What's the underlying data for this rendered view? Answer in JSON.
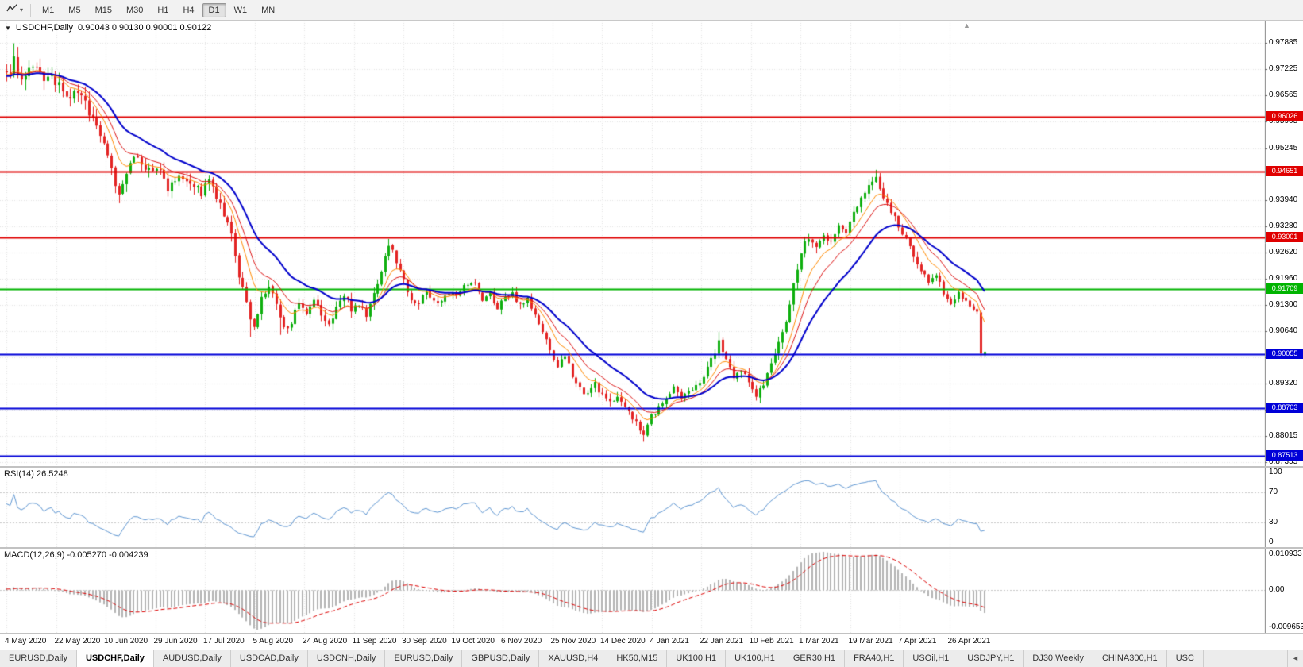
{
  "toolbar": {
    "timeframes": [
      "M1",
      "M5",
      "M15",
      "M30",
      "H1",
      "H4",
      "D1",
      "W1",
      "MN"
    ],
    "selected_timeframe": "D1"
  },
  "icons": {
    "dropdown_caret": "▾",
    "title_arrow": "▼",
    "shift_marker": "▲",
    "tab_scroll_left": "◄"
  },
  "chart": {
    "type": "candlestick",
    "symbol": "USDCHF,Daily",
    "ohlc": {
      "open": "0.90043",
      "high": "0.90130",
      "low": "0.90001",
      "close": "0.90122"
    },
    "price_range": {
      "top": 0.9845,
      "bottom": 0.8725
    },
    "price_axis_labels": [
      "0.97885",
      "0.97225",
      "0.96565",
      "0.95905",
      "0.95245",
      "0.94585",
      "0.93940",
      "0.93280",
      "0.92620",
      "0.91960",
      "0.91300",
      "0.90640",
      "0.89980",
      "0.89320",
      "0.88660",
      "0.88015",
      "0.87355"
    ],
    "date_axis_labels": [
      "4 May 2020",
      "22 May 2020",
      "10 Jun 2020",
      "29 Jun 2020",
      "17 Jul 2020",
      "5 Aug 2020",
      "24 Aug 2020",
      "11 Sep 2020",
      "30 Sep 2020",
      "19 Oct 2020",
      "6 Nov 2020",
      "25 Nov 2020",
      "14 Dec 2020",
      "4 Jan 2021",
      "22 Jan 2021",
      "10 Feb 2021",
      "1 Mar 2021",
      "19 Mar 2021",
      "7 Apr 2021",
      "26 Apr 2021"
    ],
    "hlines": [
      {
        "price": 0.96026,
        "label": "0.96026",
        "color": "#e00000",
        "width": 2
      },
      {
        "price": 0.94651,
        "label": "0.94651",
        "color": "#e00000",
        "width": 2
      },
      {
        "price": 0.93001,
        "label": "0.93001",
        "color": "#e00000",
        "width": 2
      },
      {
        "price": 0.91709,
        "label": "0.91709",
        "color": "#00b400",
        "width": 2
      },
      {
        "price": 0.90055,
        "label": "0.90055",
        "color": "#0000d8",
        "width": 2
      },
      {
        "price": 0.88703,
        "label": "0.88703",
        "color": "#0000d8",
        "width": 2
      },
      {
        "price": 0.87513,
        "label": "0.87513",
        "color": "#0000d8",
        "width": 2
      }
    ],
    "count": 262,
    "seed": 9,
    "series_anchors": [
      [
        0,
        0.9702
      ],
      [
        2,
        0.9748
      ],
      [
        4,
        0.9692
      ],
      [
        7,
        0.9722
      ],
      [
        10,
        0.9701
      ],
      [
        13,
        0.9694
      ],
      [
        16,
        0.9646
      ],
      [
        19,
        0.9668
      ],
      [
        22,
        0.9618
      ],
      [
        25,
        0.956
      ],
      [
        27,
        0.9512
      ],
      [
        30,
        0.94
      ],
      [
        32,
        0.9458
      ],
      [
        35,
        0.9512
      ],
      [
        37,
        0.9468
      ],
      [
        40,
        0.9478
      ],
      [
        43,
        0.9428
      ],
      [
        46,
        0.9462
      ],
      [
        49,
        0.9442
      ],
      [
        52,
        0.9412
      ],
      [
        54,
        0.9442
      ],
      [
        56,
        0.94
      ],
      [
        58,
        0.9352
      ],
      [
        60,
        0.9302
      ],
      [
        62,
        0.9205
      ],
      [
        64,
        0.9128
      ],
      [
        66,
        0.9078
      ],
      [
        68,
        0.9142
      ],
      [
        70,
        0.9178
      ],
      [
        72,
        0.9128
      ],
      [
        74,
        0.9068
      ],
      [
        76,
        0.9092
      ],
      [
        78,
        0.9128
      ],
      [
        80,
        0.9102
      ],
      [
        82,
        0.9138
      ],
      [
        84,
        0.9106
      ],
      [
        86,
        0.9076
      ],
      [
        88,
        0.9128
      ],
      [
        90,
        0.9152
      ],
      [
        92,
        0.9122
      ],
      [
        94,
        0.9136
      ],
      [
        96,
        0.9102
      ],
      [
        98,
        0.9158
      ],
      [
        100,
        0.9218
      ],
      [
        102,
        0.9282
      ],
      [
        104,
        0.9242
      ],
      [
        106,
        0.9192
      ],
      [
        108,
        0.9148
      ],
      [
        110,
        0.9132
      ],
      [
        112,
        0.9165
      ],
      [
        114,
        0.9142
      ],
      [
        116,
        0.9136
      ],
      [
        118,
        0.9158
      ],
      [
        120,
        0.9152
      ],
      [
        122,
        0.9186
      ],
      [
        125,
        0.9182
      ],
      [
        127,
        0.9142
      ],
      [
        129,
        0.9158
      ],
      [
        131,
        0.9122
      ],
      [
        133,
        0.9146
      ],
      [
        135,
        0.9158
      ],
      [
        137,
        0.9132
      ],
      [
        139,
        0.9146
      ],
      [
        141,
        0.9102
      ],
      [
        143,
        0.9062
      ],
      [
        145,
        0.9012
      ],
      [
        147,
        0.8978
      ],
      [
        149,
        0.8996
      ],
      [
        151,
        0.8956
      ],
      [
        153,
        0.8922
      ],
      [
        155,
        0.8902
      ],
      [
        157,
        0.8932
      ],
      [
        159,
        0.8902
      ],
      [
        161,
        0.8882
      ],
      [
        163,
        0.8906
      ],
      [
        165,
        0.8872
      ],
      [
        167,
        0.8846
      ],
      [
        170,
        0.8802
      ],
      [
        172,
        0.8852
      ],
      [
        175,
        0.8882
      ],
      [
        178,
        0.8922
      ],
      [
        180,
        0.8892
      ],
      [
        183,
        0.892
      ],
      [
        186,
        0.8952
      ],
      [
        188,
        0.8992
      ],
      [
        190,
        0.9038
      ],
      [
        192,
        0.8992
      ],
      [
        194,
        0.8938
      ],
      [
        196,
        0.8966
      ],
      [
        198,
        0.8936
      ],
      [
        200,
        0.8908
      ],
      [
        202,
        0.8932
      ],
      [
        204,
        0.8976
      ],
      [
        206,
        0.9032
      ],
      [
        208,
        0.9092
      ],
      [
        210,
        0.9182
      ],
      [
        212,
        0.9262
      ],
      [
        214,
        0.9302
      ],
      [
        216,
        0.9278
      ],
      [
        218,
        0.9312
      ],
      [
        220,
        0.9286
      ],
      [
        222,
        0.933
      ],
      [
        224,
        0.9308
      ],
      [
        226,
        0.9362
      ],
      [
        228,
        0.9402
      ],
      [
        230,
        0.9432
      ],
      [
        232,
        0.9446
      ],
      [
        234,
        0.9392
      ],
      [
        236,
        0.9362
      ],
      [
        238,
        0.9332
      ],
      [
        240,
        0.9292
      ],
      [
        242,
        0.9252
      ],
      [
        244,
        0.9222
      ],
      [
        246,
        0.9182
      ],
      [
        248,
        0.9212
      ],
      [
        250,
        0.9162
      ],
      [
        252,
        0.9132
      ],
      [
        254,
        0.9156
      ],
      [
        256,
        0.9142
      ],
      [
        258,
        0.9122
      ],
      [
        259,
        0.9112
      ],
      [
        260,
        0.9008
      ],
      [
        261,
        0.9012
      ]
    ],
    "volatility_anchors": [
      [
        0,
        0.0034
      ],
      [
        20,
        0.003
      ],
      [
        40,
        0.0026
      ],
      [
        60,
        0.0026
      ],
      [
        80,
        0.002
      ],
      [
        100,
        0.002
      ],
      [
        120,
        0.0015
      ],
      [
        140,
        0.0018
      ],
      [
        160,
        0.0017
      ],
      [
        175,
        0.0015
      ],
      [
        190,
        0.0018
      ],
      [
        205,
        0.0022
      ],
      [
        220,
        0.002
      ],
      [
        235,
        0.0022
      ],
      [
        250,
        0.0016
      ],
      [
        261,
        0.0014
      ]
    ],
    "wick_overrides": [
      [
        2,
        "h",
        0.9788
      ],
      [
        30,
        "l",
        0.9386
      ],
      [
        65,
        "l",
        0.905
      ],
      [
        73,
        "l",
        0.9055
      ],
      [
        102,
        "h",
        0.9296
      ],
      [
        125,
        "h",
        0.9196
      ],
      [
        170,
        "l",
        0.8786
      ],
      [
        190,
        "h",
        0.9062
      ],
      [
        231,
        "h",
        0.9452
      ],
      [
        232,
        "h",
        0.947
      ],
      [
        260,
        "l",
        0.9
      ]
    ],
    "moving_averages": [
      {
        "period": 8,
        "color": "#ff8a00",
        "width": 1
      },
      {
        "period": 13,
        "color": "#dd1111",
        "width": 1
      },
      {
        "period": 24,
        "color": "#0000cc",
        "width": 2
      }
    ],
    "colors": {
      "candle_up": "#0faf0f",
      "candle_down": "#e32424",
      "grid": "#e4e4e4",
      "level_line": "#c8c8c8",
      "scale_separator": "#7a7a7a"
    }
  },
  "rsi": {
    "name": "RSI(14)",
    "value": "26.5248",
    "scale_labels": [
      "100",
      "70",
      "30",
      "0"
    ],
    "level_lines": [
      70,
      30
    ],
    "color": "#5e96d2"
  },
  "macd": {
    "name": "MACD(12,26,9)",
    "main_value": "-0.005270",
    "signal_value": "-0.004239",
    "scale_labels": [
      "0.010933",
      "0.00",
      "-0.009653"
    ],
    "histogram_color": "#b4b4b4",
    "signal_color": "#dd0000"
  },
  "tabs": {
    "items": [
      "EURUSD,Daily",
      "USDCHF,Daily",
      "AUDUSD,Daily",
      "USDCAD,Daily",
      "USDCNH,Daily",
      "EURUSD,Daily",
      "GBPUSD,Daily",
      "XAUUSD,H4",
      "HK50,M15",
      "UK100,H1",
      "UK100,H1",
      "GER30,H1",
      "FRA40,H1",
      "USOil,H1",
      "USDJPY,H1",
      "DJ30,Weekly",
      "CHINA300,H1",
      "USC"
    ],
    "active_index": 1
  }
}
